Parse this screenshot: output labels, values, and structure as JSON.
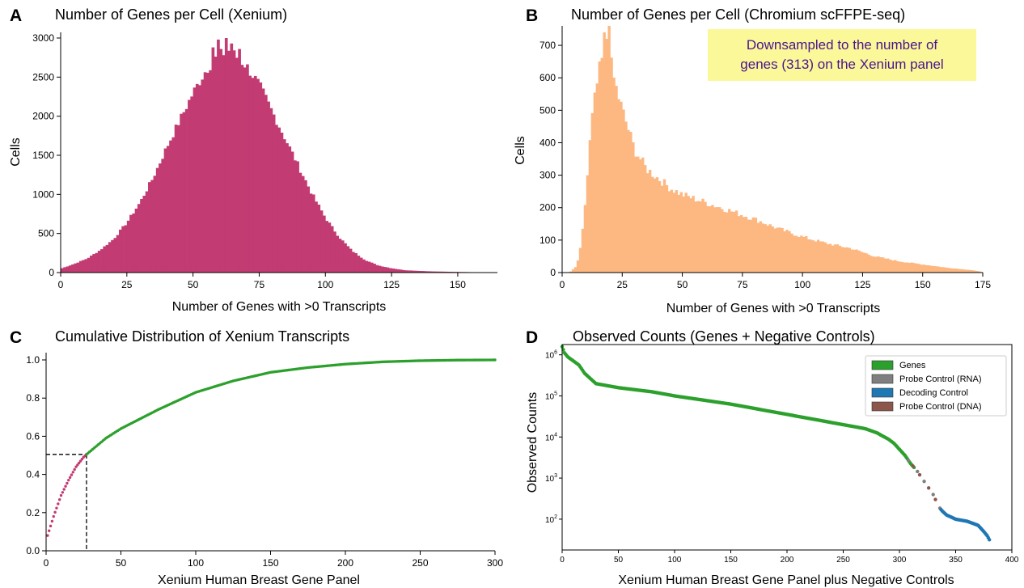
{
  "chart_data": [
    {
      "id": "A",
      "type": "bar",
      "panel_label": "A",
      "title": "Number of Genes per Cell (Xenium)",
      "xlabel": "Number of Genes with >0 Transcripts",
      "ylabel": "Cells",
      "xlim": [
        0,
        165
      ],
      "ylim": [
        0,
        3000
      ],
      "xticks": [
        0,
        25,
        50,
        75,
        100,
        125,
        150
      ],
      "yticks": [
        0,
        500,
        1000,
        1500,
        2000,
        2500,
        3000
      ],
      "color": "#c23b72",
      "histogram": {
        "profile": [
          [
            0,
            50
          ],
          [
            5,
            110
          ],
          [
            10,
            180
          ],
          [
            15,
            290
          ],
          [
            20,
            430
          ],
          [
            25,
            640
          ],
          [
            30,
            900
          ],
          [
            35,
            1220
          ],
          [
            40,
            1600
          ],
          [
            45,
            1950
          ],
          [
            50,
            2300
          ],
          [
            55,
            2600
          ],
          [
            58,
            2720
          ],
          [
            60,
            2770
          ],
          [
            63,
            2850
          ],
          [
            65,
            2800
          ],
          [
            70,
            2650
          ],
          [
            75,
            2400
          ],
          [
            80,
            2050
          ],
          [
            85,
            1700
          ],
          [
            90,
            1350
          ],
          [
            95,
            1000
          ],
          [
            100,
            700
          ],
          [
            105,
            460
          ],
          [
            110,
            280
          ],
          [
            115,
            160
          ],
          [
            120,
            90
          ],
          [
            125,
            55
          ],
          [
            130,
            30
          ],
          [
            140,
            15
          ],
          [
            150,
            8
          ],
          [
            160,
            3
          ],
          [
            165,
            0
          ]
        ],
        "peaks": [
          [
            57,
            2880
          ],
          [
            59,
            2980
          ],
          [
            62,
            3000
          ],
          [
            64,
            2930
          ],
          [
            67,
            2860
          ]
        ]
      }
    },
    {
      "id": "B",
      "type": "bar",
      "panel_label": "B",
      "title": "Number of Genes per Cell (Chromium scFFPE-seq)",
      "xlabel": "Number of Genes with >0 Transcripts",
      "ylabel": "Cells",
      "xlim": [
        0,
        175
      ],
      "ylim": [
        0,
        760
      ],
      "xticks": [
        0,
        25,
        50,
        75,
        100,
        125,
        150,
        175
      ],
      "yticks": [
        0,
        100,
        200,
        300,
        400,
        500,
        600,
        700
      ],
      "color": "#fdb882",
      "annotation": "Downsampled to the number of genes (313) on the Xenium panel",
      "annotation_lines": [
        "Downsampled to the number of",
        "genes (313) on the Xenium panel"
      ],
      "histogram": {
        "profile": [
          [
            3,
            0
          ],
          [
            6,
            20
          ],
          [
            8,
            90
          ],
          [
            10,
            250
          ],
          [
            12,
            450
          ],
          [
            14,
            560
          ],
          [
            16,
            640
          ],
          [
            18,
            690
          ],
          [
            20,
            650
          ],
          [
            22,
            580
          ],
          [
            25,
            500
          ],
          [
            28,
            430
          ],
          [
            30,
            380
          ],
          [
            35,
            320
          ],
          [
            40,
            290
          ],
          [
            45,
            260
          ],
          [
            50,
            240
          ],
          [
            60,
            215
          ],
          [
            70,
            190
          ],
          [
            80,
            165
          ],
          [
            90,
            135
          ],
          [
            100,
            110
          ],
          [
            110,
            90
          ],
          [
            120,
            75
          ],
          [
            130,
            50
          ],
          [
            140,
            35
          ],
          [
            150,
            25
          ],
          [
            160,
            15
          ],
          [
            170,
            8
          ],
          [
            174,
            3
          ],
          [
            175,
            0
          ]
        ],
        "peaks": [
          [
            17,
            740
          ],
          [
            18,
            720
          ],
          [
            19,
            760
          ]
        ]
      }
    },
    {
      "id": "C",
      "type": "line",
      "panel_label": "C",
      "title": "Cumulative Distribution of Xenium Transcripts",
      "xlabel": "Xenium Human Breast Gene Panel",
      "ylabel": "",
      "xlim": [
        0,
        300
      ],
      "ylim": [
        0,
        1.0
      ],
      "xticks": [
        0,
        50,
        100,
        150,
        200,
        250,
        300
      ],
      "yticks": [
        0.0,
        0.2,
        0.4,
        0.6,
        0.8,
        1.0
      ],
      "series": [
        {
          "color": "#c23b72",
          "x_range": [
            1,
            27
          ],
          "style": "points"
        },
        {
          "color": "#2ca02c",
          "x_range": [
            27,
            300
          ],
          "style": "points"
        }
      ],
      "curve": {
        "x": [
          0,
          1,
          5,
          10,
          15,
          20,
          25,
          27,
          40,
          50,
          75,
          100,
          125,
          150,
          175,
          200,
          225,
          250,
          275,
          300
        ],
        "y": [
          0.06,
          0.08,
          0.18,
          0.29,
          0.37,
          0.44,
          0.49,
          0.505,
          0.59,
          0.64,
          0.74,
          0.83,
          0.89,
          0.935,
          0.96,
          0.978,
          0.99,
          0.996,
          0.999,
          1.0
        ]
      },
      "reference": {
        "x": 27,
        "y": 0.505,
        "style": "dashed"
      }
    },
    {
      "id": "D",
      "type": "scatter",
      "panel_label": "D",
      "title": "Observed Counts (Genes + Negative Controls)",
      "xlabel": "Xenium Human Breast Gene Panel plus Negative Controls",
      "ylabel": "Observed Counts",
      "xlim": [
        0,
        400
      ],
      "ylim_log10": [
        1.25,
        6.25
      ],
      "yscale": "log",
      "xticks": [
        0,
        50,
        100,
        150,
        200,
        250,
        300,
        350,
        400
      ],
      "yticks_log10": [
        2,
        3,
        4,
        5,
        6
      ],
      "ytick_labels": [
        {
          "base": "10",
          "exp": "2"
        },
        {
          "base": "10",
          "exp": "3"
        },
        {
          "base": "10",
          "exp": "4"
        },
        {
          "base": "10",
          "exp": "5"
        },
        {
          "base": "10",
          "exp": "6"
        }
      ],
      "legend_position": "top-right",
      "legend": [
        {
          "name": "Genes",
          "color": "#2ca02c"
        },
        {
          "name": "Probe Control (RNA)",
          "color": "#7f7f7f"
        },
        {
          "name": "Decoding Control",
          "color": "#1f77b4"
        },
        {
          "name": "Probe Control (DNA)",
          "color": "#8c564b"
        }
      ],
      "series": [
        {
          "name": "Genes",
          "color": "#2ca02c",
          "x_range": [
            0,
            313
          ]
        },
        {
          "name": "Probe Control (RNA)",
          "color": "#7f7f7f",
          "x": [
            308,
            316,
            322,
            330,
            336
          ]
        },
        {
          "name": "Probe Control (DNA)",
          "color": "#8c564b",
          "x": [
            312,
            318,
            326,
            332
          ]
        },
        {
          "name": "Decoding Control",
          "color": "#1f77b4",
          "x_range": [
            337,
            380
          ]
        }
      ],
      "curve_log10": {
        "x": [
          0,
          2,
          5,
          10,
          15,
          20,
          30,
          50,
          80,
          100,
          150,
          200,
          250,
          270,
          280,
          290,
          295,
          300,
          305,
          310,
          315,
          320,
          325,
          330,
          335,
          338,
          342,
          350,
          360,
          370,
          375,
          378,
          380
        ],
        "y": [
          6.2,
          6.05,
          5.95,
          5.85,
          5.75,
          5.55,
          5.3,
          5.2,
          5.1,
          5.0,
          4.8,
          4.55,
          4.3,
          4.2,
          4.1,
          3.95,
          3.85,
          3.7,
          3.55,
          3.35,
          3.2,
          3.0,
          2.8,
          2.6,
          2.3,
          2.2,
          2.1,
          2.0,
          1.95,
          1.85,
          1.7,
          1.6,
          1.5
        ]
      }
    }
  ]
}
